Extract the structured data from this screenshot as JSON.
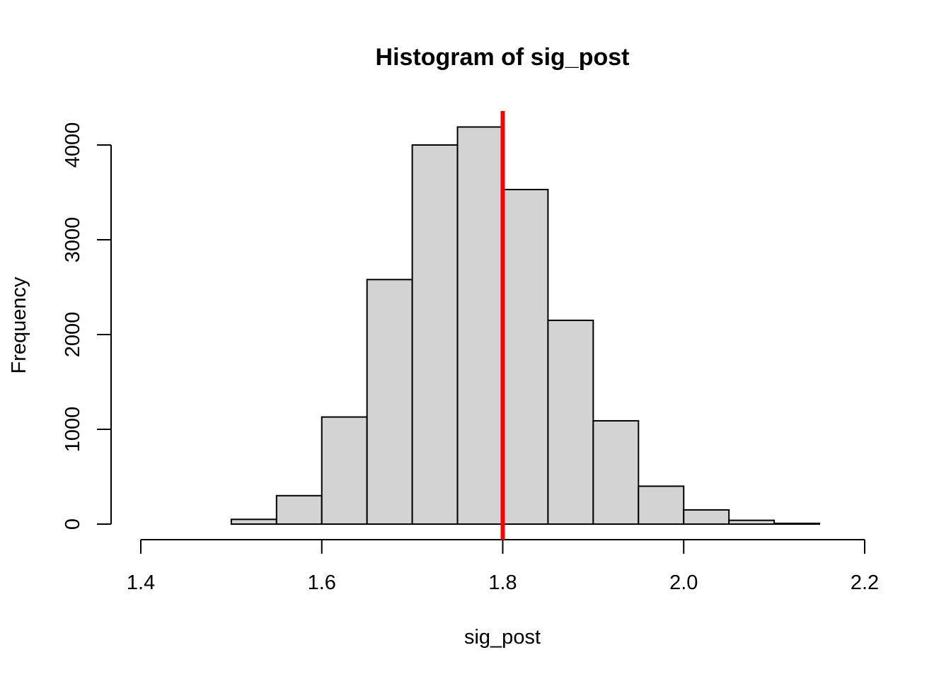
{
  "chart_data": {
    "type": "bar",
    "title": "Histogram of sig_post",
    "xlabel": "sig_post",
    "ylabel": "Frequency",
    "xlim": [
      1.4,
      2.2
    ],
    "ylim": [
      0,
      4000
    ],
    "x_ticks": [
      "1.4",
      "1.6",
      "1.8",
      "2.0",
      "2.2"
    ],
    "y_ticks": [
      "0",
      "1000",
      "2000",
      "3000",
      "4000"
    ],
    "bins": [
      {
        "from": 1.4,
        "to": 1.45,
        "count": 0
      },
      {
        "from": 1.45,
        "to": 1.5,
        "count": 0
      },
      {
        "from": 1.5,
        "to": 1.55,
        "count": 50
      },
      {
        "from": 1.55,
        "to": 1.6,
        "count": 300
      },
      {
        "from": 1.6,
        "to": 1.65,
        "count": 1130
      },
      {
        "from": 1.65,
        "to": 1.7,
        "count": 2580
      },
      {
        "from": 1.7,
        "to": 1.75,
        "count": 4000
      },
      {
        "from": 1.75,
        "to": 1.8,
        "count": 4190
      },
      {
        "from": 1.8,
        "to": 1.85,
        "count": 3530
      },
      {
        "from": 1.85,
        "to": 1.9,
        "count": 2150
      },
      {
        "from": 1.9,
        "to": 1.95,
        "count": 1090
      },
      {
        "from": 1.95,
        "to": 2.0,
        "count": 400
      },
      {
        "from": 2.0,
        "to": 2.05,
        "count": 150
      },
      {
        "from": 2.05,
        "to": 2.1,
        "count": 40
      },
      {
        "from": 2.1,
        "to": 2.15,
        "count": 8
      },
      {
        "from": 2.15,
        "to": 2.2,
        "count": 0
      }
    ],
    "reference_line": {
      "x": 1.8,
      "color": "#ff0000"
    },
    "bar_color": "#d3d3d3",
    "grid": false,
    "legend": "none"
  }
}
